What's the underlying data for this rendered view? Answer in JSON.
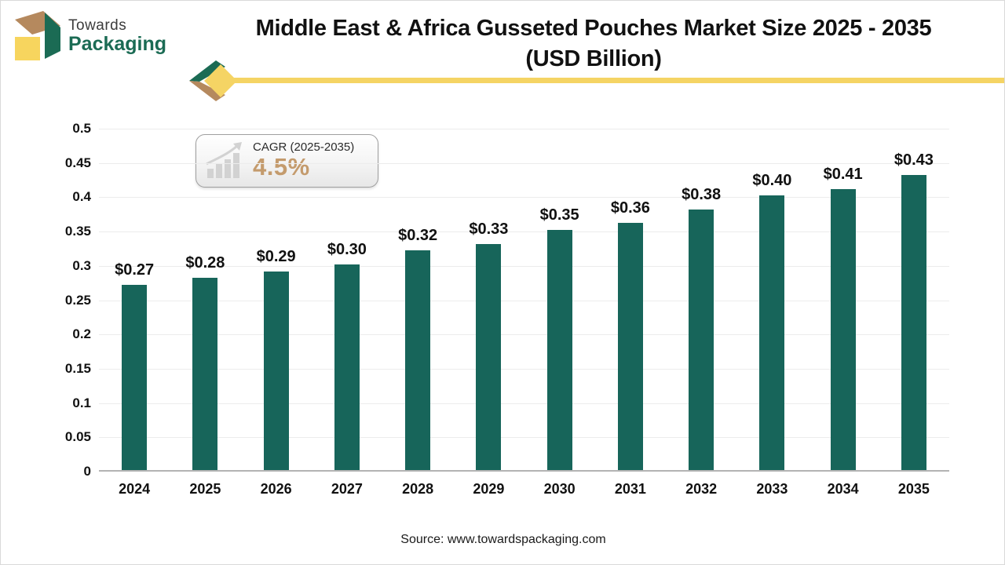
{
  "logo": {
    "line1": "Towards",
    "line2": "Packaging"
  },
  "title": {
    "line1": "Middle East & Africa Gusseted Pouches Market Size 2025 - 2035",
    "line2": "(USD Billion)"
  },
  "cagr": {
    "label": "CAGR (2025-2035)",
    "value": "4.5%",
    "icon": "growth-chart-icon"
  },
  "source": "Source: www.towardspackaging.com",
  "colors": {
    "bar": "#17655a",
    "accent_gold": "#f5d464",
    "cagr_value": "#c49b6d",
    "logo_green": "#1b6b54",
    "logo_yellow": "#f7d55e",
    "logo_tan": "#b5895e",
    "gridline": "#ececec",
    "axis_line": "#b3b3b3"
  },
  "chart_data": {
    "type": "bar",
    "title": "Middle East & Africa Gusseted Pouches Market Size 2025 - 2035 (USD Billion)",
    "categories": [
      "2024",
      "2025",
      "2026",
      "2027",
      "2028",
      "2029",
      "2030",
      "2031",
      "2032",
      "2033",
      "2034",
      "2035"
    ],
    "values": [
      0.27,
      0.28,
      0.29,
      0.3,
      0.32,
      0.33,
      0.35,
      0.36,
      0.38,
      0.4,
      0.41,
      0.43
    ],
    "value_labels": [
      "$0.27",
      "$0.28",
      "$0.29",
      "$0.30",
      "$0.32",
      "$0.33",
      "$0.35",
      "$0.36",
      "$0.38",
      "$0.40",
      "$0.41",
      "$0.43"
    ],
    "xlabel": "",
    "ylabel": "",
    "ylim": [
      0,
      0.5
    ],
    "yticks": [
      0,
      0.05,
      0.1,
      0.15,
      0.2,
      0.25,
      0.3,
      0.35,
      0.4,
      0.45,
      0.5
    ],
    "ytick_labels": [
      "0",
      "0.05",
      "0.1",
      "0.15",
      "0.2",
      "0.25",
      "0.3",
      "0.35",
      "0.4",
      "0.45",
      "0.5"
    ],
    "grid": true,
    "legend": false,
    "bar_color": "#17655a"
  }
}
